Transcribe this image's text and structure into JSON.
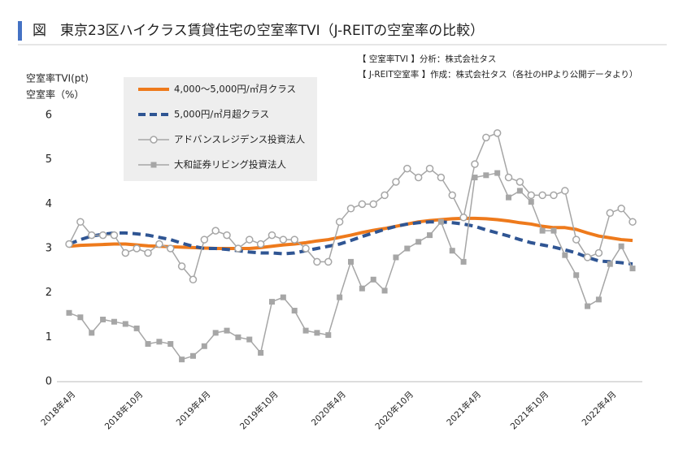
{
  "chart_data": {
    "type": "line",
    "title": "図　東京23区ハイクラス賃貸住宅の空室率TVI（J-REITの空室率の比較）",
    "notes": [
      "【 空室率TVI 】分析：株式会社タス",
      "【 J-REIT空室率 】作成：株式会社タス（各社のHPより公開データより）"
    ],
    "y_labels": [
      "空室率TVI(pt)",
      "空室率（%）"
    ],
    "categories": [
      "2018年4月",
      null,
      null,
      null,
      null,
      null,
      "2018年10月",
      null,
      null,
      null,
      null,
      null,
      "2019年4月",
      null,
      null,
      null,
      null,
      null,
      "2019年10月",
      null,
      null,
      null,
      null,
      null,
      "2020年4月",
      null,
      null,
      null,
      null,
      null,
      "2020年10月",
      null,
      null,
      null,
      null,
      null,
      "2021年4月",
      null,
      null,
      null,
      null,
      null,
      "2021年10月",
      null,
      null,
      null,
      null,
      null,
      "2022年4月",
      null,
      null
    ],
    "ylim": [
      0,
      6
    ],
    "yticks": [
      0,
      1,
      2,
      3,
      4,
      5,
      6
    ],
    "grid": false,
    "series": [
      {
        "name": "4,000～5,000円/㎡月クラス",
        "color": "#ee7a1c",
        "width": 4,
        "dash": false,
        "marker": "none",
        "values": [
          3.05,
          3.07,
          3.08,
          3.09,
          3.1,
          3.1,
          3.08,
          3.06,
          3.05,
          3.04,
          3.03,
          3.02,
          3.01,
          3.0,
          3.0,
          3.0,
          3.0,
          3.02,
          3.05,
          3.08,
          3.1,
          3.13,
          3.17,
          3.2,
          3.25,
          3.3,
          3.36,
          3.41,
          3.45,
          3.5,
          3.55,
          3.6,
          3.63,
          3.65,
          3.67,
          3.68,
          3.68,
          3.67,
          3.65,
          3.62,
          3.58,
          3.55,
          3.5,
          3.47,
          3.47,
          3.43,
          3.35,
          3.28,
          3.24,
          3.2,
          3.18
        ]
      },
      {
        "name": "5,000円/㎡月超クラス",
        "color": "#2f5593",
        "width": 4,
        "dash": true,
        "marker": "none",
        "values": [
          3.1,
          3.2,
          3.28,
          3.32,
          3.35,
          3.35,
          3.33,
          3.3,
          3.25,
          3.2,
          3.12,
          3.05,
          3.0,
          3.0,
          2.98,
          2.95,
          2.92,
          2.9,
          2.9,
          2.88,
          2.9,
          2.95,
          3.0,
          3.05,
          3.1,
          3.18,
          3.27,
          3.35,
          3.43,
          3.5,
          3.55,
          3.58,
          3.6,
          3.6,
          3.58,
          3.55,
          3.5,
          3.42,
          3.35,
          3.28,
          3.2,
          3.13,
          3.08,
          3.03,
          2.97,
          2.9,
          2.8,
          2.72,
          2.7,
          2.68,
          2.65
        ]
      },
      {
        "name": "アドバンスレジデンス投資法人",
        "color": "#a6a6a6",
        "width": 1.5,
        "dash": false,
        "marker": "circle",
        "values": [
          3.1,
          3.6,
          3.3,
          3.3,
          3.3,
          2.9,
          3.0,
          2.9,
          3.1,
          3.0,
          2.6,
          2.3,
          3.2,
          3.4,
          3.3,
          3.0,
          3.2,
          3.1,
          3.3,
          3.2,
          3.2,
          3.0,
          2.7,
          2.7,
          3.6,
          3.9,
          4.0,
          4.0,
          4.2,
          4.5,
          4.8,
          4.6,
          4.8,
          4.6,
          4.2,
          3.7,
          4.9,
          5.5,
          5.6,
          4.6,
          4.5,
          4.2,
          4.2,
          4.2,
          4.3,
          3.2,
          2.8,
          2.9,
          3.8,
          3.9,
          3.6
        ]
      },
      {
        "name": "大和証券リビング投資法人",
        "color": "#a6a6a6",
        "width": 1.5,
        "dash": false,
        "marker": "square",
        "values": [
          1.55,
          1.45,
          1.1,
          1.4,
          1.35,
          1.3,
          1.2,
          0.85,
          0.9,
          0.85,
          0.5,
          0.58,
          0.8,
          1.1,
          1.15,
          1.0,
          0.95,
          0.65,
          1.8,
          1.9,
          1.6,
          1.15,
          1.1,
          1.05,
          1.9,
          2.7,
          2.1,
          2.3,
          2.05,
          2.8,
          3.0,
          3.15,
          3.3,
          3.6,
          2.95,
          2.7,
          4.6,
          4.65,
          4.7,
          4.15,
          4.3,
          4.05,
          3.4,
          3.4,
          2.85,
          2.4,
          1.7,
          1.85,
          2.65,
          3.05,
          2.55
        ]
      }
    ]
  }
}
